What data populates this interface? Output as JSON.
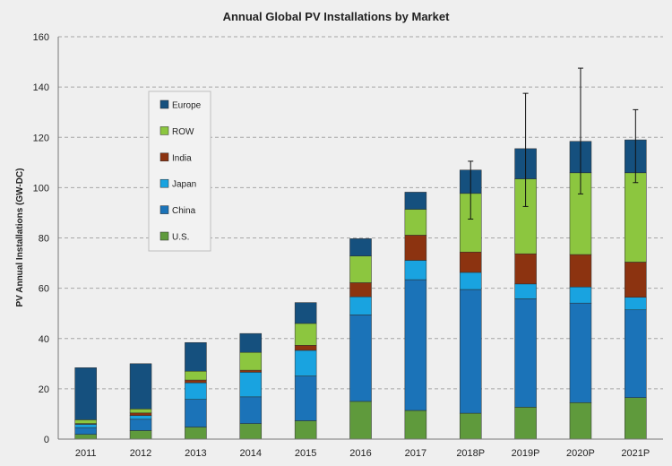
{
  "chart_data": {
    "type": "bar",
    "stacked": true,
    "title": "Annual Global PV Installations by Market",
    "ylabel": "PV Annual Installations (GW-DC)",
    "xlabel": "",
    "ylim": [
      0,
      160
    ],
    "yticks": [
      0,
      20,
      40,
      60,
      80,
      100,
      120,
      140,
      160
    ],
    "grid": "horizontal dashed",
    "legend_position": "top-left",
    "categories": [
      "2011",
      "2012",
      "2013",
      "2014",
      "2015",
      "2016",
      "2017",
      "2018P",
      "2019P",
      "2020P",
      "2021P"
    ],
    "series": [
      {
        "name": "U.S.",
        "color": "#5f9a3c",
        "values": [
          1.9,
          3.4,
          4.8,
          6.2,
          7.3,
          15.0,
          11.4,
          10.3,
          12.7,
          14.5,
          16.5
        ]
      },
      {
        "name": "China",
        "color": "#1b73b8",
        "values": [
          2.7,
          4.5,
          11.0,
          10.6,
          17.8,
          34.4,
          52.0,
          49.2,
          43.1,
          39.6,
          34.9
        ]
      },
      {
        "name": "Japan",
        "color": "#19a3e0",
        "values": [
          1.3,
          1.5,
          6.6,
          9.8,
          10.2,
          7.2,
          7.7,
          6.8,
          5.9,
          6.4,
          5.0
        ]
      },
      {
        "name": "India",
        "color": "#8c3310",
        "values": [
          0.3,
          1.0,
          1.1,
          0.8,
          2.0,
          5.6,
          10.0,
          8.1,
          12.0,
          12.9,
          14.0
        ]
      },
      {
        "name": "ROW",
        "color": "#8cc63f",
        "values": [
          1.5,
          1.6,
          3.5,
          7.1,
          8.7,
          10.6,
          10.3,
          23.3,
          29.8,
          32.5,
          35.5
        ]
      },
      {
        "name": "Europe",
        "color": "#15507e",
        "values": [
          20.7,
          18.0,
          11.4,
          7.5,
          8.3,
          6.9,
          6.8,
          9.3,
          12.0,
          12.5,
          13.1
        ]
      }
    ],
    "totals": [
      28.4,
      30.0,
      38.4,
      42.0,
      54.3,
      79.7,
      98.2,
      107.0,
      115.5,
      118.4,
      119.0
    ],
    "error_bars": [
      null,
      null,
      null,
      null,
      null,
      null,
      null,
      [
        87.5,
        110.5
      ],
      [
        92.5,
        137.5
      ],
      [
        97.5,
        147.5
      ],
      [
        102.0,
        131.0
      ]
    ]
  }
}
